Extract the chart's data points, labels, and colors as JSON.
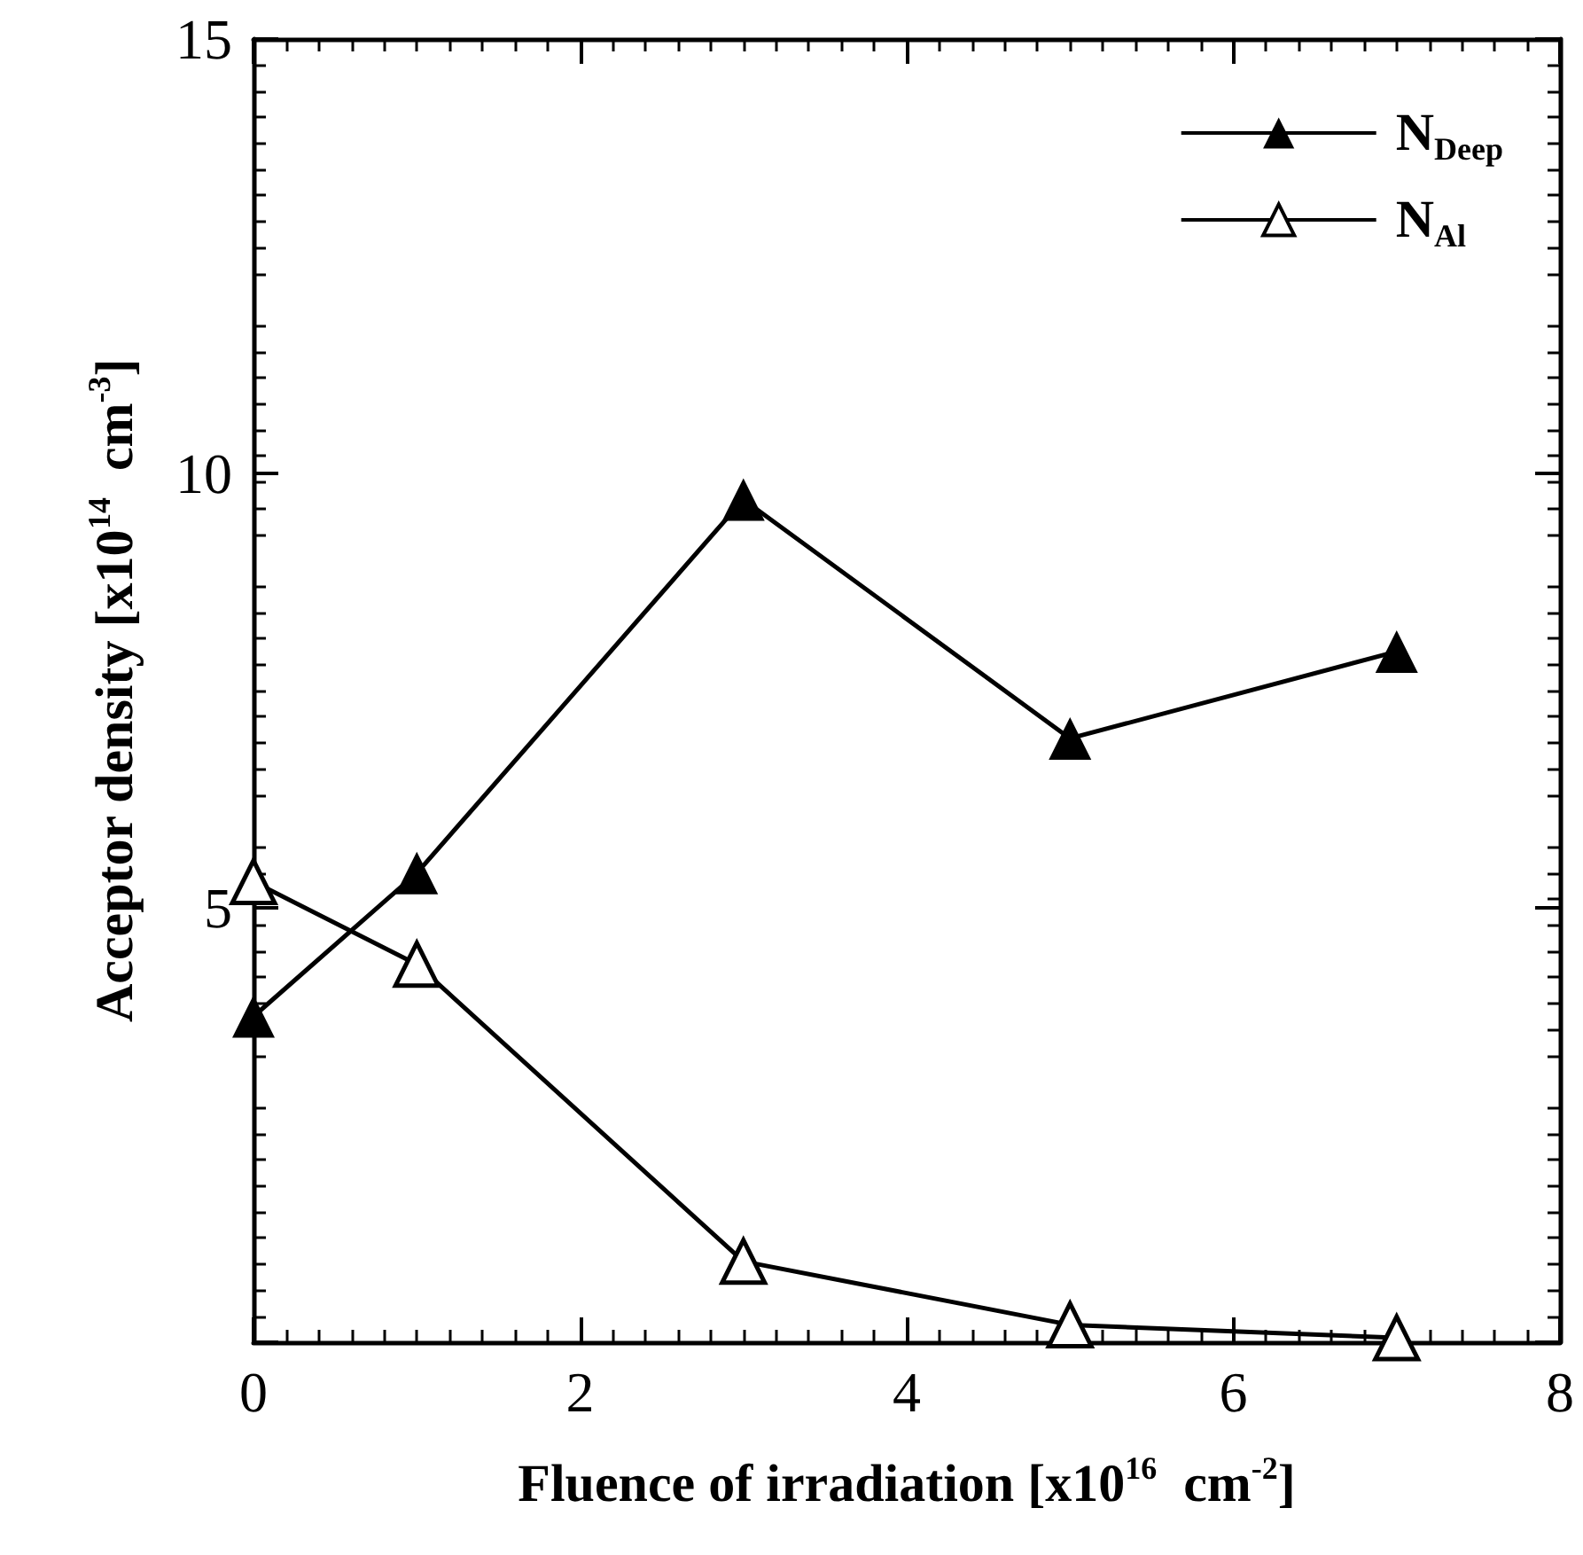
{
  "chart_data": {
    "type": "line",
    "xlabel": "Fluence of irradiation [x10$^{16}$  cm$^{-2}$]",
    "ylabel": "Acceptor density [x10$^{14}$  cm$^{-3}$]",
    "x": [
      0,
      1,
      3,
      5,
      7
    ],
    "series": [
      {
        "name": "N$_{Deep}$",
        "color": "#000000",
        "values": [
          3.75,
          5.4,
          9.7,
          6.95,
          7.95
        ]
      },
      {
        "name": "N$_{Al}$",
        "color": "#000000",
        "values": [
          5.3,
          4.35,
          0.93,
          0.2,
          0.05
        ]
      }
    ],
    "xlim": [
      0,
      8
    ],
    "xticks": [
      0,
      2,
      4,
      6,
      8
    ],
    "ylim": [
      0,
      15
    ],
    "yticks": [
      {
        "value": 0,
        "label": null
      },
      5,
      10,
      15
    ],
    "grid": false,
    "legend": "top right",
    "marker": "triangle",
    "line_style": "solid"
  }
}
